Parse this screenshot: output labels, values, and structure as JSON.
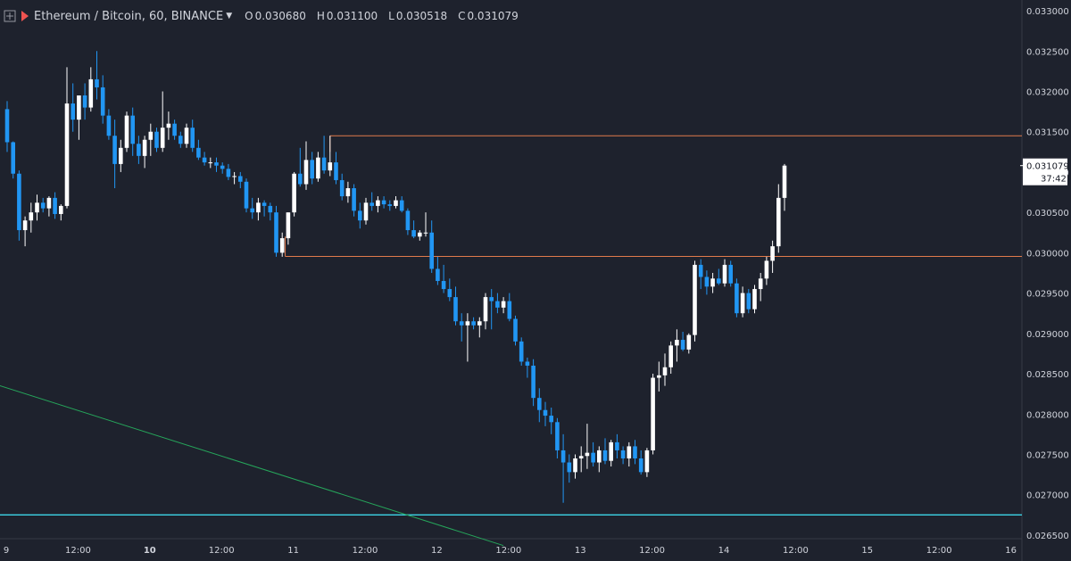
{
  "header": {
    "symbol": "Ethereum / Bitcoin, 60, BINANCE",
    "ohlc": [
      {
        "k": "O",
        "v": "0.030680"
      },
      {
        "k": "H",
        "v": "0.031100"
      },
      {
        "k": "L",
        "v": "0.030518"
      },
      {
        "k": "C",
        "v": "0.031079"
      }
    ]
  },
  "price_tag": {
    "value": "0.031079",
    "countdown": "37:42"
  },
  "colors": {
    "background": "#1e222d",
    "up": "#ffffff",
    "down": "#2196f3",
    "resistance": "#e07a4c",
    "trendline": "#26a65b",
    "support": "#3dd6e8",
    "axis_text": "#d1d4dc"
  },
  "chart_data": {
    "type": "candlestick",
    "title": "Ethereum / Bitcoin, 60, BINANCE",
    "y_ticks": [
      "0.033000",
      "0.032500",
      "0.032000",
      "0.031500",
      "0.031000",
      "0.030500",
      "0.030000",
      "0.029500",
      "0.029000",
      "0.028500",
      "0.028000",
      "0.027500",
      "0.027000",
      "0.026500"
    ],
    "ylim": [
      0.0263,
      0.0331
    ],
    "x_ticks": [
      "9",
      "12:00",
      "10",
      "12:00",
      "11",
      "12:00",
      "12",
      "12:00",
      "13",
      "12:00",
      "14",
      "12:00",
      "15",
      "12:00",
      "16"
    ],
    "x_ticks_bold": [
      false,
      false,
      true,
      false,
      false,
      false,
      false,
      false,
      false,
      false,
      false,
      false,
      false,
      false,
      false
    ],
    "x_tick_index": [
      0,
      12,
      24,
      36,
      48,
      60,
      72,
      84,
      96,
      108,
      120,
      132,
      144,
      156,
      168
    ],
    "candles": [
      [
        0.03178,
        0.03188,
        0.03125,
        0.03137
      ],
      [
        0.03137,
        0.03138,
        0.03092,
        0.03098
      ],
      [
        0.03098,
        0.03102,
        0.03015,
        0.03028
      ],
      [
        0.03028,
        0.03045,
        0.03008,
        0.0304
      ],
      [
        0.0304,
        0.03062,
        0.03025,
        0.0305
      ],
      [
        0.0305,
        0.03072,
        0.0304,
        0.03062
      ],
      [
        0.03062,
        0.03068,
        0.0305,
        0.03055
      ],
      [
        0.03055,
        0.0307,
        0.03045,
        0.03068
      ],
      [
        0.03068,
        0.03075,
        0.03042,
        0.03048
      ],
      [
        0.03048,
        0.0306,
        0.0304,
        0.03058
      ],
      [
        0.03058,
        0.0323,
        0.03055,
        0.03185
      ],
      [
        0.03185,
        0.0321,
        0.0315,
        0.03165
      ],
      [
        0.03165,
        0.03195,
        0.0314,
        0.03195
      ],
      [
        0.03195,
        0.0321,
        0.03165,
        0.0318
      ],
      [
        0.0318,
        0.0323,
        0.03175,
        0.03215
      ],
      [
        0.03215,
        0.0325,
        0.0319,
        0.03205
      ],
      [
        0.03205,
        0.0322,
        0.0316,
        0.0317
      ],
      [
        0.0317,
        0.03178,
        0.0314,
        0.03145
      ],
      [
        0.03145,
        0.03165,
        0.0308,
        0.0311
      ],
      [
        0.0311,
        0.0314,
        0.031,
        0.0313
      ],
      [
        0.0313,
        0.03175,
        0.03125,
        0.0317
      ],
      [
        0.0317,
        0.0318,
        0.0312,
        0.03135
      ],
      [
        0.03135,
        0.03145,
        0.0311,
        0.0312
      ],
      [
        0.0312,
        0.03145,
        0.03105,
        0.0314
      ],
      [
        0.0314,
        0.0316,
        0.0312,
        0.0315
      ],
      [
        0.0315,
        0.03155,
        0.03125,
        0.0313
      ],
      [
        0.0313,
        0.032,
        0.03125,
        0.03155
      ],
      [
        0.03155,
        0.03175,
        0.0314,
        0.0316
      ],
      [
        0.0316,
        0.03165,
        0.0314,
        0.03145
      ],
      [
        0.03145,
        0.0315,
        0.0313,
        0.03135
      ],
      [
        0.03135,
        0.0316,
        0.0313,
        0.03155
      ],
      [
        0.03155,
        0.03165,
        0.03125,
        0.0313
      ],
      [
        0.0313,
        0.0314,
        0.03115,
        0.03118
      ],
      [
        0.03118,
        0.03125,
        0.03108,
        0.03112
      ],
      [
        0.03112,
        0.03118,
        0.03105,
        0.03112
      ],
      [
        0.03112,
        0.03118,
        0.031,
        0.03108
      ],
      [
        0.03108,
        0.03112,
        0.03098,
        0.03104
      ],
      [
        0.03104,
        0.0311,
        0.0309,
        0.03094
      ],
      [
        0.03094,
        0.031,
        0.03085,
        0.03095
      ],
      [
        0.03095,
        0.031,
        0.0308,
        0.03088
      ],
      [
        0.03088,
        0.03092,
        0.0305,
        0.03055
      ],
      [
        0.03055,
        0.03068,
        0.03042,
        0.0305
      ],
      [
        0.0305,
        0.03068,
        0.0304,
        0.03062
      ],
      [
        0.03062,
        0.03065,
        0.03045,
        0.03058
      ],
      [
        0.03058,
        0.03062,
        0.0304,
        0.0305
      ],
      [
        0.0305,
        0.03058,
        0.02995,
        0.03
      ],
      [
        0.03,
        0.03025,
        0.02995,
        0.03018
      ],
      [
        0.03018,
        0.0305,
        0.0301,
        0.0305
      ],
      [
        0.0305,
        0.031,
        0.03045,
        0.03098
      ],
      [
        0.03098,
        0.0313,
        0.03082,
        0.03085
      ],
      [
        0.03085,
        0.03138,
        0.03078,
        0.03115
      ],
      [
        0.03115,
        0.03125,
        0.03085,
        0.03092
      ],
      [
        0.03092,
        0.03125,
        0.03088,
        0.03118
      ],
      [
        0.03118,
        0.03145,
        0.03098,
        0.03102
      ],
      [
        0.03102,
        0.03145,
        0.03095,
        0.03112
      ],
      [
        0.03112,
        0.03125,
        0.03085,
        0.0309
      ],
      [
        0.0309,
        0.03098,
        0.03065,
        0.0307
      ],
      [
        0.0307,
        0.03088,
        0.03062,
        0.0308
      ],
      [
        0.0308,
        0.03085,
        0.03045,
        0.03052
      ],
      [
        0.03052,
        0.03062,
        0.0303,
        0.0304
      ],
      [
        0.0304,
        0.03068,
        0.03035,
        0.03062
      ],
      [
        0.03062,
        0.03075,
        0.03052,
        0.03058
      ],
      [
        0.03058,
        0.0307,
        0.0305,
        0.03065
      ],
      [
        0.03065,
        0.0307,
        0.03055,
        0.0306
      ],
      [
        0.0306,
        0.03065,
        0.03052,
        0.03058
      ],
      [
        0.03058,
        0.0307,
        0.03055,
        0.03065
      ],
      [
        0.03065,
        0.0307,
        0.0305,
        0.03052
      ],
      [
        0.03052,
        0.03055,
        0.03022,
        0.03028
      ],
      [
        0.03028,
        0.0304,
        0.03018,
        0.0302
      ],
      [
        0.0302,
        0.03028,
        0.03015,
        0.03025
      ],
      [
        0.03025,
        0.0305,
        0.0302,
        0.03025
      ],
      [
        0.03025,
        0.0304,
        0.02975,
        0.0298
      ],
      [
        0.0298,
        0.02995,
        0.0296,
        0.02965
      ],
      [
        0.02965,
        0.02985,
        0.0295,
        0.02955
      ],
      [
        0.02955,
        0.02968,
        0.0294,
        0.02945
      ],
      [
        0.02945,
        0.02958,
        0.0291,
        0.02915
      ],
      [
        0.02915,
        0.02925,
        0.0289,
        0.0291
      ],
      [
        0.0291,
        0.02925,
        0.02865,
        0.02915
      ],
      [
        0.02915,
        0.0292,
        0.02905,
        0.0291
      ],
      [
        0.0291,
        0.0292,
        0.02895,
        0.02915
      ],
      [
        0.02915,
        0.0295,
        0.02905,
        0.02945
      ],
      [
        0.02945,
        0.02955,
        0.02905,
        0.0294
      ],
      [
        0.0294,
        0.0295,
        0.02925,
        0.02932
      ],
      [
        0.02932,
        0.02945,
        0.02925,
        0.0294
      ],
      [
        0.0294,
        0.0295,
        0.02915,
        0.02918
      ],
      [
        0.02918,
        0.02922,
        0.02885,
        0.0289
      ],
      [
        0.0289,
        0.02895,
        0.0286,
        0.02865
      ],
      [
        0.02865,
        0.0287,
        0.02845,
        0.0286
      ],
      [
        0.0286,
        0.02868,
        0.0281,
        0.0282
      ],
      [
        0.0282,
        0.02832,
        0.0279,
        0.02805
      ],
      [
        0.02805,
        0.02815,
        0.02785,
        0.02798
      ],
      [
        0.02798,
        0.02808,
        0.02775,
        0.0279
      ],
      [
        0.0279,
        0.02795,
        0.02745,
        0.02755
      ],
      [
        0.02755,
        0.02775,
        0.0269,
        0.0274
      ],
      [
        0.0274,
        0.0275,
        0.02715,
        0.02728
      ],
      [
        0.02728,
        0.0275,
        0.0272,
        0.02745
      ],
      [
        0.02745,
        0.0276,
        0.02728,
        0.02748
      ],
      [
        0.02748,
        0.02788,
        0.02732,
        0.02752
      ],
      [
        0.02752,
        0.02765,
        0.02735,
        0.0274
      ],
      [
        0.0274,
        0.0276,
        0.02728,
        0.02755
      ],
      [
        0.02755,
        0.0277,
        0.02738,
        0.02742
      ],
      [
        0.02742,
        0.02768,
        0.02735,
        0.02765
      ],
      [
        0.02765,
        0.02775,
        0.02745,
        0.02755
      ],
      [
        0.02755,
        0.0276,
        0.02738,
        0.02745
      ],
      [
        0.02745,
        0.02765,
        0.02735,
        0.0276
      ],
      [
        0.0276,
        0.02768,
        0.02738,
        0.02745
      ],
      [
        0.02745,
        0.02755,
        0.02725,
        0.02728
      ],
      [
        0.02728,
        0.02758,
        0.02722,
        0.02755
      ],
      [
        0.02755,
        0.0285,
        0.0275,
        0.02845
      ],
      [
        0.02845,
        0.02865,
        0.02828,
        0.02848
      ],
      [
        0.02848,
        0.02875,
        0.02835,
        0.02858
      ],
      [
        0.02858,
        0.0289,
        0.0285,
        0.02885
      ],
      [
        0.02885,
        0.02905,
        0.02865,
        0.02892
      ],
      [
        0.02892,
        0.02902,
        0.02878,
        0.0288
      ],
      [
        0.0288,
        0.029,
        0.02875,
        0.02898
      ],
      [
        0.02898,
        0.0299,
        0.0289,
        0.02985
      ],
      [
        0.02985,
        0.02992,
        0.02955,
        0.0297
      ],
      [
        0.0297,
        0.02978,
        0.02948,
        0.02958
      ],
      [
        0.02958,
        0.02975,
        0.0295,
        0.02968
      ],
      [
        0.02968,
        0.0298,
        0.0296,
        0.02962
      ],
      [
        0.02962,
        0.02992,
        0.02958,
        0.02985
      ],
      [
        0.02985,
        0.0299,
        0.02958,
        0.02962
      ],
      [
        0.02962,
        0.02968,
        0.0292,
        0.02925
      ],
      [
        0.02925,
        0.02958,
        0.0292,
        0.0295
      ],
      [
        0.0295,
        0.02955,
        0.02925,
        0.0293
      ],
      [
        0.0293,
        0.0296,
        0.02925,
        0.02955
      ],
      [
        0.02955,
        0.02975,
        0.0294,
        0.02968
      ],
      [
        0.02968,
        0.02995,
        0.0296,
        0.0299
      ],
      [
        0.0299,
        0.03015,
        0.02975,
        0.03008
      ],
      [
        0.03008,
        0.03085,
        0.03,
        0.03068
      ],
      [
        0.03068,
        0.0311,
        0.03052,
        0.03108
      ]
    ],
    "lines": [
      {
        "name": "resistance",
        "x1": 54,
        "x2": 181,
        "y": 0.03145
      },
      {
        "name": "resistance-left-tick",
        "x1": 54,
        "x2": 54,
        "y1": 0.03145,
        "y2": 0.03125
      },
      {
        "name": "support",
        "x1": 46.5,
        "x2": 181,
        "y": 0.029955
      },
      {
        "name": "support-left-tick",
        "x1": 46.5,
        "x2": 46.5,
        "y1": 0.029955,
        "y2": 0.0302
      },
      {
        "name": "horizontal-support",
        "x1": -2,
        "x2": 190,
        "y": 0.02675
      },
      {
        "name": "trendline",
        "x1": -2,
        "y1": 0.02837,
        "x2": 83,
        "y2": 0.02637
      }
    ]
  }
}
